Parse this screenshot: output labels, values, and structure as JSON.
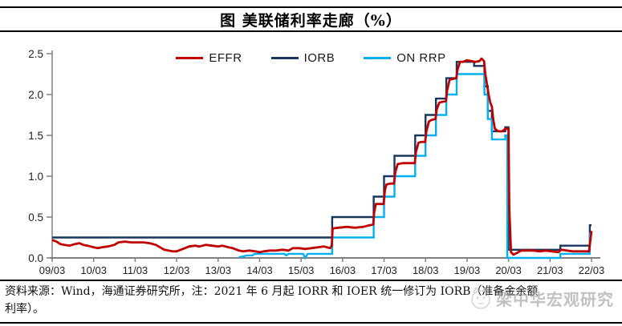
{
  "title": "图  美联储利率走廊（%）",
  "legend": [
    {
      "id": "effr",
      "label": "EFFR",
      "color": "#C00000"
    },
    {
      "id": "iorb",
      "label": "IORB",
      "color": "#17365D"
    },
    {
      "id": "onrrp",
      "label": "ON RRP",
      "color": "#00B0F0"
    }
  ],
  "footer": {
    "line1": "资料来源：Wind，海通证券研究所，注：2021 年 6 月起 IORR 和 IOER 统一修订为 IORB（准备金余额",
    "line2": "利率）。"
  },
  "watermark": {
    "text": "梁中华宏观研究"
  },
  "colors": {
    "axis": "#808080",
    "tick_text": "#1f1f1f",
    "effr": "#C00000",
    "iorb": "#17365D",
    "onrrp": "#00B0F0"
  },
  "chart_data": {
    "type": "line",
    "title": "图 美联储利率走廊（%）",
    "xlabel": "",
    "ylabel": "",
    "grid": false,
    "legend_position": "top-center",
    "ylim": [
      0,
      2.5
    ],
    "y_tick_labels": [
      "0.0",
      "0.5",
      "1.0",
      "1.5",
      "2.0",
      "2.5"
    ],
    "y_tick_values": [
      0,
      0.5,
      1,
      1.5,
      2,
      2.5
    ],
    "x_note": "x unit = years since 2009/03 (March of each year at integers 0..13)",
    "xlim": [
      0,
      13
    ],
    "x_tick_values": [
      0,
      1,
      2,
      3,
      4,
      5,
      6,
      7,
      8,
      9,
      10,
      11,
      12,
      13
    ],
    "x_tick_labels": [
      "09/03",
      "10/03",
      "11/03",
      "12/03",
      "13/03",
      "14/03",
      "15/03",
      "16/03",
      "17/03",
      "18/03",
      "19/03",
      "20/03",
      "21/03",
      "22/03"
    ],
    "series": [
      {
        "name": "IORB",
        "color": "#17365D",
        "width": 2.4,
        "points": [
          [
            0,
            0.25
          ],
          [
            6.75,
            0.25
          ],
          [
            6.75,
            0.5
          ],
          [
            7.75,
            0.5
          ],
          [
            7.75,
            0.75
          ],
          [
            8,
            0.75
          ],
          [
            8,
            1
          ],
          [
            8.25,
            1
          ],
          [
            8.25,
            1.25
          ],
          [
            8.75,
            1.25
          ],
          [
            8.75,
            1.5
          ],
          [
            9,
            1.5
          ],
          [
            9,
            1.75
          ],
          [
            9.25,
            1.75
          ],
          [
            9.25,
            1.95
          ],
          [
            9.5,
            1.95
          ],
          [
            9.5,
            2.2
          ],
          [
            9.75,
            2.2
          ],
          [
            9.75,
            2.4
          ],
          [
            10.17,
            2.4
          ],
          [
            10.17,
            2.35
          ],
          [
            10.42,
            2.35
          ],
          [
            10.42,
            2.1
          ],
          [
            10.5,
            2.1
          ],
          [
            10.5,
            1.8
          ],
          [
            10.6,
            1.8
          ],
          [
            10.6,
            1.55
          ],
          [
            10.92,
            1.55
          ],
          [
            10.92,
            1.6
          ],
          [
            11,
            1.6
          ],
          [
            11,
            0.1
          ],
          [
            12.25,
            0.1
          ],
          [
            12.25,
            0.15
          ],
          [
            12.96,
            0.15
          ],
          [
            12.96,
            0.4
          ],
          [
            13,
            0.4
          ]
        ]
      },
      {
        "name": "ON RRP",
        "color": "#00B0F0",
        "width": 2.4,
        "points": [
          [
            4.5,
            0.01
          ],
          [
            4.62,
            0.02
          ],
          [
            4.68,
            0.03
          ],
          [
            4.82,
            0.03
          ],
          [
            4.88,
            0.05
          ],
          [
            5.6,
            0.05
          ],
          [
            5.64,
            0.03
          ],
          [
            5.7,
            0.05
          ],
          [
            6.05,
            0.05
          ],
          [
            6.1,
            0
          ],
          [
            6.16,
            0.05
          ],
          [
            6.75,
            0.05
          ],
          [
            6.75,
            0.25
          ],
          [
            7.75,
            0.25
          ],
          [
            7.75,
            0.5
          ],
          [
            8,
            0.5
          ],
          [
            8,
            0.75
          ],
          [
            8.25,
            0.75
          ],
          [
            8.25,
            1
          ],
          [
            8.75,
            1
          ],
          [
            8.75,
            1.25
          ],
          [
            9,
            1.25
          ],
          [
            9,
            1.5
          ],
          [
            9.25,
            1.5
          ],
          [
            9.25,
            1.75
          ],
          [
            9.5,
            1.75
          ],
          [
            9.5,
            2
          ],
          [
            9.75,
            2
          ],
          [
            9.75,
            2.25
          ],
          [
            10.42,
            2.25
          ],
          [
            10.42,
            2
          ],
          [
            10.5,
            2
          ],
          [
            10.5,
            1.7
          ],
          [
            10.6,
            1.7
          ],
          [
            10.6,
            1.45
          ],
          [
            10.92,
            1.45
          ],
          [
            10.92,
            1.5
          ],
          [
            10.97,
            1.5
          ],
          [
            10.97,
            0
          ],
          [
            12.25,
            0
          ],
          [
            12.25,
            0.05
          ],
          [
            12.96,
            0.05
          ],
          [
            12.96,
            0.3
          ],
          [
            13,
            0.3
          ]
        ]
      },
      {
        "name": "EFFR",
        "color": "#C00000",
        "width": 2.8,
        "points": [
          [
            0,
            0.22
          ],
          [
            0.1,
            0.2
          ],
          [
            0.2,
            0.17
          ],
          [
            0.3,
            0.16
          ],
          [
            0.42,
            0.15
          ],
          [
            0.55,
            0.17
          ],
          [
            0.65,
            0.18
          ],
          [
            0.75,
            0.16
          ],
          [
            0.85,
            0.15
          ],
          [
            1,
            0.13
          ],
          [
            1.1,
            0.12
          ],
          [
            1.2,
            0.13
          ],
          [
            1.35,
            0.14
          ],
          [
            1.5,
            0.16
          ],
          [
            1.6,
            0.19
          ],
          [
            1.75,
            0.2
          ],
          [
            1.9,
            0.19
          ],
          [
            2.05,
            0.19
          ],
          [
            2.2,
            0.19
          ],
          [
            2.35,
            0.18
          ],
          [
            2.5,
            0.16
          ],
          [
            2.6,
            0.13
          ],
          [
            2.7,
            0.1
          ],
          [
            2.8,
            0.09
          ],
          [
            2.9,
            0.08
          ],
          [
            3,
            0.08
          ],
          [
            3.1,
            0.1
          ],
          [
            3.2,
            0.12
          ],
          [
            3.3,
            0.14
          ],
          [
            3.45,
            0.15
          ],
          [
            3.55,
            0.14
          ],
          [
            3.7,
            0.16
          ],
          [
            3.85,
            0.15
          ],
          [
            4,
            0.14
          ],
          [
            4.1,
            0.15
          ],
          [
            4.25,
            0.13
          ],
          [
            4.35,
            0.12
          ],
          [
            4.5,
            0.09
          ],
          [
            4.6,
            0.08
          ],
          [
            4.75,
            0.09
          ],
          [
            4.9,
            0.08
          ],
          [
            5,
            0.07
          ],
          [
            5.1,
            0.08
          ],
          [
            5.25,
            0.09
          ],
          [
            5.4,
            0.09
          ],
          [
            5.55,
            0.1
          ],
          [
            5.7,
            0.09
          ],
          [
            5.8,
            0.12
          ],
          [
            5.95,
            0.12
          ],
          [
            6.1,
            0.11
          ],
          [
            6.25,
            0.12
          ],
          [
            6.4,
            0.13
          ],
          [
            6.55,
            0.14
          ],
          [
            6.7,
            0.12
          ],
          [
            6.74,
            0.15
          ],
          [
            6.76,
            0.36
          ],
          [
            6.9,
            0.37
          ],
          [
            7.1,
            0.38
          ],
          [
            7.3,
            0.37
          ],
          [
            7.5,
            0.38
          ],
          [
            7.65,
            0.4
          ],
          [
            7.74,
            0.41
          ],
          [
            7.76,
            0.55
          ],
          [
            7.8,
            0.66
          ],
          [
            7.9,
            0.66
          ],
          [
            7.99,
            0.66
          ],
          [
            8.02,
            0.83
          ],
          [
            8.06,
            0.9
          ],
          [
            8.15,
            0.91
          ],
          [
            8.24,
            0.91
          ],
          [
            8.27,
            1.05
          ],
          [
            8.33,
            1.15
          ],
          [
            8.45,
            1.16
          ],
          [
            8.6,
            1.16
          ],
          [
            8.74,
            1.16
          ],
          [
            8.77,
            1.3
          ],
          [
            8.83,
            1.41
          ],
          [
            8.9,
            1.42
          ],
          [
            8.99,
            1.42
          ],
          [
            9.02,
            1.55
          ],
          [
            9.08,
            1.67
          ],
          [
            9.15,
            1.69
          ],
          [
            9.24,
            1.7
          ],
          [
            9.27,
            1.82
          ],
          [
            9.33,
            1.9
          ],
          [
            9.4,
            1.91
          ],
          [
            9.49,
            1.92
          ],
          [
            9.52,
            2.05
          ],
          [
            9.58,
            2.18
          ],
          [
            9.65,
            2.19
          ],
          [
            9.74,
            2.2
          ],
          [
            9.77,
            2.3
          ],
          [
            9.83,
            2.4
          ],
          [
            9.9,
            2.4
          ],
          [
            10,
            2.42
          ],
          [
            10.1,
            2.41
          ],
          [
            10.2,
            2.4
          ],
          [
            10.3,
            2.41
          ],
          [
            10.35,
            2.44
          ],
          [
            10.41,
            2.41
          ],
          [
            10.44,
            2.25
          ],
          [
            10.48,
            2.13
          ],
          [
            10.52,
            2
          ],
          [
            10.56,
            1.9
          ],
          [
            10.6,
            1.85
          ],
          [
            10.63,
            1.7
          ],
          [
            10.67,
            1.58
          ],
          [
            10.75,
            1.55
          ],
          [
            10.85,
            1.55
          ],
          [
            10.92,
            1.58
          ],
          [
            11,
            1.58
          ],
          [
            11.02,
            0.6
          ],
          [
            11.06,
            0.07
          ],
          [
            11.12,
            0.04
          ],
          [
            11.2,
            0.06
          ],
          [
            11.3,
            0.09
          ],
          [
            11.45,
            0.09
          ],
          [
            11.6,
            0.09
          ],
          [
            11.75,
            0.08
          ],
          [
            11.9,
            0.09
          ],
          [
            12.05,
            0.08
          ],
          [
            12.2,
            0.07
          ],
          [
            12.27,
            0.1
          ],
          [
            12.4,
            0.09
          ],
          [
            12.55,
            0.08
          ],
          [
            12.7,
            0.08
          ],
          [
            12.85,
            0.08
          ],
          [
            12.94,
            0.08
          ],
          [
            12.97,
            0.2
          ],
          [
            13,
            0.33
          ]
        ]
      }
    ]
  }
}
